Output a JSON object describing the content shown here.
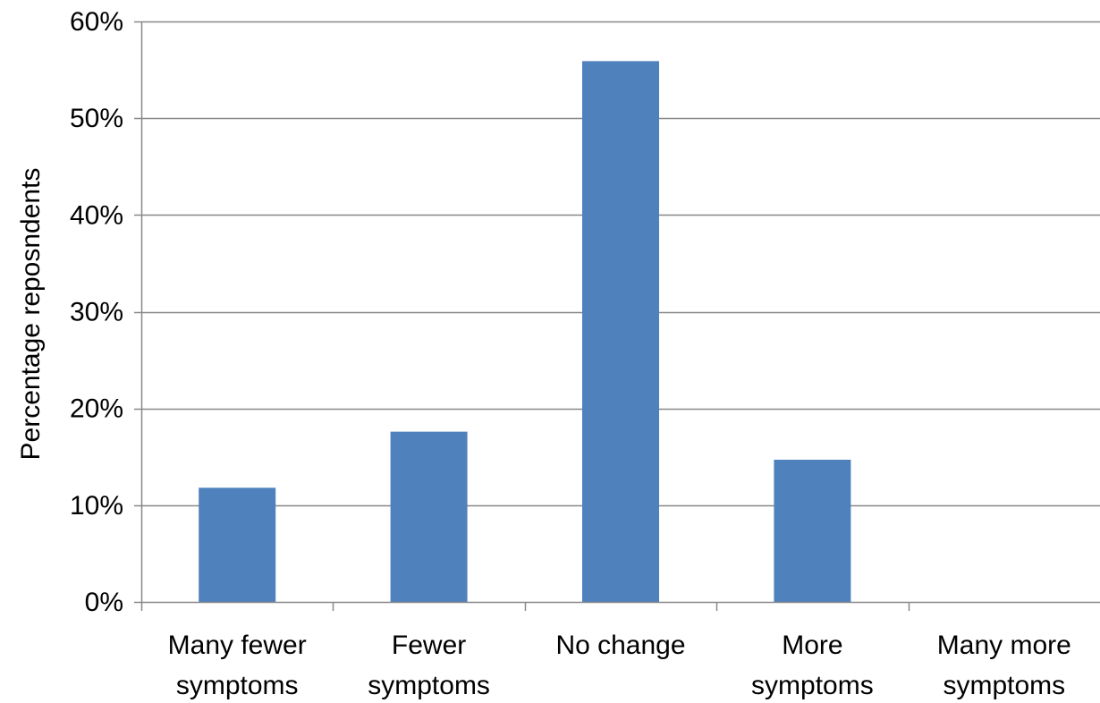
{
  "chart_data": {
    "type": "bar",
    "title": "",
    "xlabel": "",
    "ylabel": "Percentage reposndents",
    "categories": [
      [
        "Many fewer",
        "symptoms"
      ],
      [
        "Fewer",
        "symptoms"
      ],
      [
        "No change"
      ],
      [
        "More",
        "symptoms"
      ],
      [
        "Many more",
        "symptoms"
      ]
    ],
    "values": [
      0.118,
      0.176,
      0.559,
      0.147,
      0.0
    ],
    "ylim": [
      0,
      0.6
    ],
    "yticks": [
      0,
      0.1,
      0.2,
      0.3,
      0.4,
      0.5,
      0.6
    ],
    "ytick_labels": [
      "0%",
      "10%",
      "20%",
      "30%",
      "40%",
      "50%",
      "60%"
    ],
    "grid": "horizontal",
    "legend": "none",
    "colors": {
      "bar": "#4f81bd",
      "grid": "#888888",
      "axis": "#888888",
      "text": "#000000"
    }
  }
}
